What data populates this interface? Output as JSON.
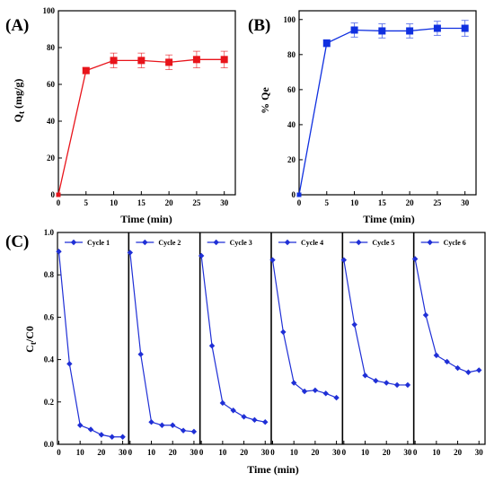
{
  "colors": {
    "panel_a": "#e8141b",
    "panel_b": "#1030e0",
    "panel_c": "#1f2fd6",
    "axis": "#000000"
  },
  "chart_data": [
    {
      "panel": "(A)",
      "type": "line",
      "marker": "square",
      "color": "#e8141b",
      "xlabel": "Time (min)",
      "ylabel": "Qt (mg/g)",
      "ylabel_main": "Q",
      "ylabel_sub": "t",
      "ylabel_rest": " (mg/g)",
      "xlim": [
        0,
        32
      ],
      "ylim": [
        0,
        100
      ],
      "xticks": [
        0,
        5,
        10,
        15,
        20,
        25,
        30
      ],
      "yticks": [
        0,
        20,
        40,
        60,
        80,
        100
      ],
      "x": [
        0,
        5,
        10,
        15,
        20,
        25,
        30
      ],
      "y": [
        0,
        67.5,
        73,
        73,
        72,
        73.5,
        73.5
      ],
      "error": [
        null,
        1.5,
        4,
        4,
        4,
        4.5,
        4.5
      ]
    },
    {
      "panel": "(B)",
      "type": "line",
      "marker": "square",
      "color": "#1030e0",
      "xlabel": "Time (min)",
      "ylabel": "% Qe",
      "xlim": [
        0,
        32
      ],
      "ylim": [
        0,
        105
      ],
      "xticks": [
        0,
        5,
        10,
        15,
        20,
        25,
        30
      ],
      "yticks": [
        0,
        20,
        40,
        60,
        80,
        100
      ],
      "x": [
        0,
        5,
        10,
        15,
        20,
        25,
        30
      ],
      "y": [
        0,
        86.5,
        94,
        93.5,
        93.5,
        95,
        95
      ],
      "error": [
        null,
        2,
        4,
        4,
        4,
        4,
        4.5
      ]
    },
    {
      "panel": "(C)",
      "type": "line",
      "marker": "diamond",
      "color": "#1f2fd6",
      "xlabel": "Time (min)",
      "ylabel": "Ct/C0",
      "ylabel_main": "C",
      "ylabel_sub": "t",
      "ylabel_rest": "/C0",
      "ylim": [
        0,
        1.0
      ],
      "yticks": [
        0,
        0.2,
        0.4,
        0.6,
        0.8,
        1.0
      ],
      "ytick_labels": [
        "0.0",
        "0.2",
        "0.4",
        "0.6",
        "0.8",
        "1.0"
      ],
      "xlim": [
        0,
        32
      ],
      "xticks": [
        0,
        10,
        20,
        30
      ],
      "legend_position": "top-left of each sub-panel",
      "series": [
        {
          "name": "Cycle 1",
          "x": [
            0,
            5,
            10,
            15,
            20,
            25,
            30
          ],
          "y": [
            0.91,
            0.38,
            0.09,
            0.07,
            0.045,
            0.035,
            0.035
          ]
        },
        {
          "name": "Cycle 2",
          "x": [
            0,
            5,
            10,
            15,
            20,
            25,
            30
          ],
          "y": [
            0.905,
            0.425,
            0.105,
            0.09,
            0.09,
            0.065,
            0.06
          ]
        },
        {
          "name": "Cycle 3",
          "x": [
            0,
            5,
            10,
            15,
            20,
            25,
            30
          ],
          "y": [
            0.89,
            0.465,
            0.195,
            0.16,
            0.13,
            0.115,
            0.105
          ]
        },
        {
          "name": "Cycle 4",
          "x": [
            0,
            5,
            10,
            15,
            20,
            25,
            30
          ],
          "y": [
            0.87,
            0.53,
            0.29,
            0.25,
            0.255,
            0.24,
            0.22
          ]
        },
        {
          "name": "Cycle 5",
          "x": [
            0,
            5,
            10,
            15,
            20,
            25,
            30
          ],
          "y": [
            0.87,
            0.565,
            0.325,
            0.3,
            0.29,
            0.28,
            0.28
          ]
        },
        {
          "name": "Cycle 6",
          "x": [
            0,
            5,
            10,
            15,
            20,
            25,
            30
          ],
          "y": [
            0.875,
            0.61,
            0.42,
            0.39,
            0.36,
            0.34,
            0.35
          ]
        }
      ]
    }
  ]
}
